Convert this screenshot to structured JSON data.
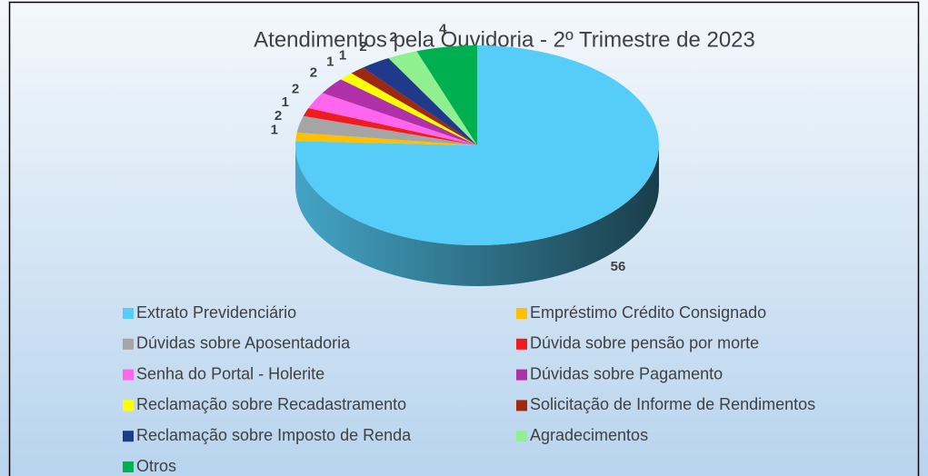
{
  "chart_data": {
    "type": "pie3d",
    "title": "Atendimentos pela Ouvidoria - 2º Trimestre de 2023",
    "categories": [
      "Extrato Previdenciário",
      "Empréstimo Crédito Consignado",
      "Dúvidas sobre Aposentadoria",
      "Dúvida sobre pensão por morte",
      "Senha do Portal - Holerite",
      "Dúvidas sobre Pagamento",
      "Reclamação sobre Recadastramento",
      "Solicitação de Informe de Rendimentos",
      "Reclamação sobre Imposto de Renda",
      "Agradecimentos",
      "Otros"
    ],
    "values": [
      56,
      1,
      2,
      1,
      2,
      2,
      1,
      1,
      2,
      2,
      4
    ],
    "colors": [
      "#55cdf8",
      "#ffc000",
      "#a5a5a5",
      "#ee1c1c",
      "#ff66ee",
      "#b030a8",
      "#ffff00",
      "#a02810",
      "#1f3a8a",
      "#90f090",
      "#00b050"
    ]
  }
}
